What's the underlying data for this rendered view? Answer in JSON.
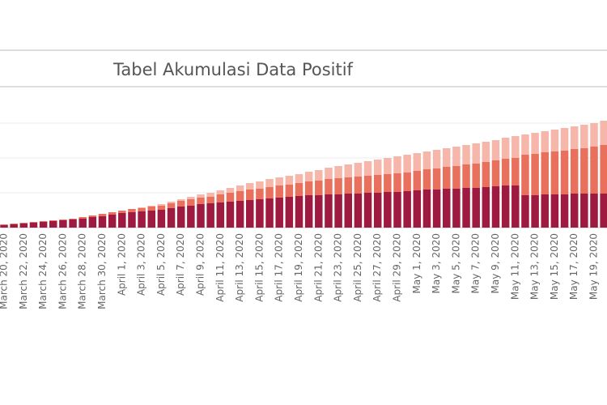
{
  "chart_data": {
    "type": "stacked-bar",
    "title": "Tabel Akumulasi Data Positif",
    "categories": [
      "March 20, 2020",
      null,
      "March 22, 2020",
      null,
      "March 24, 2020",
      null,
      "March 26, 2020",
      null,
      "March 28, 2020",
      null,
      "March 30, 2020",
      null,
      "April 1, 2020",
      null,
      "April 3, 2020",
      null,
      "April 5, 2020",
      null,
      "April 7, 2020",
      null,
      "April 9, 2020",
      null,
      "April 11, 2020",
      null,
      "April 13, 2020",
      null,
      "April 15, 2020",
      null,
      "April 17, 2020",
      null,
      "April 19, 2020",
      null,
      "April 21, 2020",
      null,
      "April 23, 2020",
      null,
      "April 25, 2020",
      null,
      "April 27, 2020",
      null,
      "April 29, 2020",
      null,
      "May 1, 2020",
      null,
      "May 3, 2020",
      null,
      "May 5, 2020",
      null,
      "May 7, 2020",
      null,
      "May 9, 2020",
      null,
      "May 11, 2020",
      null,
      "May 13, 2020",
      null,
      "May 15, 2020",
      null,
      "May 17, 2020",
      null,
      "May 19, 2020",
      null
    ],
    "series": [
      {
        "color": "#9f1a40",
        "values": [
          3,
          4,
          5,
          6,
          7,
          8,
          9,
          10,
          11,
          13,
          14,
          16,
          18,
          19,
          20,
          21,
          22,
          24,
          26,
          27,
          29,
          30,
          31,
          32,
          33,
          34,
          35,
          36,
          37,
          38,
          39,
          40,
          40,
          41,
          41,
          42,
          42,
          43,
          43,
          44,
          44,
          45,
          46,
          47,
          47,
          48,
          48,
          49,
          49,
          50,
          51,
          52,
          52,
          40,
          40,
          41,
          41,
          41,
          42,
          42,
          42,
          42
        ]
      },
      {
        "color": "#e8705c",
        "values": [
          1,
          1,
          1,
          1,
          1,
          1,
          1,
          1,
          2,
          2,
          3,
          3,
          3,
          4,
          4,
          5,
          5,
          6,
          7,
          8,
          8,
          8,
          10,
          11,
          12,
          13,
          13,
          14,
          15,
          15,
          16,
          17,
          18,
          19,
          20,
          20,
          21,
          21,
          22,
          22,
          23,
          23,
          24,
          25,
          26,
          27,
          28,
          29,
          30,
          31,
          32,
          33,
          34,
          50,
          51,
          52,
          53,
          54,
          55,
          56,
          58,
          60
        ]
      },
      {
        "color": "#f6b7aa",
        "values": [
          0,
          0,
          0,
          0,
          0,
          0,
          0,
          0,
          0,
          0,
          0,
          0,
          0,
          0,
          1,
          1,
          2,
          2,
          2,
          3,
          4,
          5,
          5,
          6,
          7,
          8,
          9,
          10,
          10,
          11,
          11,
          12,
          13,
          14,
          15,
          16,
          17,
          18,
          19,
          20,
          21,
          22,
          22,
          22,
          23,
          23,
          24,
          24,
          25,
          25,
          25,
          26,
          27,
          25,
          26,
          26,
          27,
          28,
          28,
          29,
          29,
          30
        ]
      }
    ],
    "ylim": [
      0,
      140
    ],
    "yticks": [
      0,
      43,
      86,
      129
    ],
    "grid": true
  }
}
